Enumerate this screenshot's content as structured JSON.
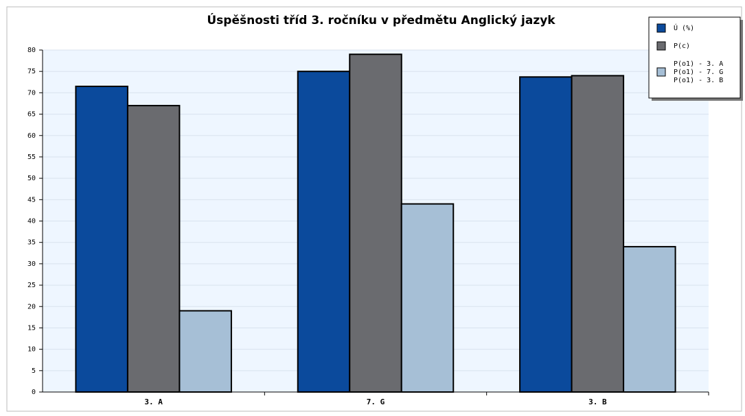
{
  "chart_data": {
    "type": "bar",
    "title": "Úspěšnosti tříd 3. ročníku v předmětu Anglický jazyk",
    "categories": [
      "3. A",
      "7. G",
      "3. B"
    ],
    "series": [
      {
        "name": "Ú (%)",
        "color": "#0b4a9c",
        "values": [
          71.5,
          75,
          73.7
        ]
      },
      {
        "name": "P(c)",
        "color": "#6a6b6f",
        "values": [
          67,
          79,
          74
        ]
      },
      {
        "name": [
          "P(o1) - 3. A",
          "P(o1) - 7. G",
          "P(o1) - 3. B"
        ],
        "color": "#a6bfd6",
        "values": [
          19,
          44,
          34
        ]
      }
    ],
    "ylim": [
      0,
      80
    ],
    "yticks": [
      0,
      5,
      10,
      15,
      20,
      25,
      30,
      35,
      40,
      45,
      50,
      55,
      60,
      65,
      70,
      75,
      80
    ],
    "grid": true,
    "legend": "top-right"
  }
}
